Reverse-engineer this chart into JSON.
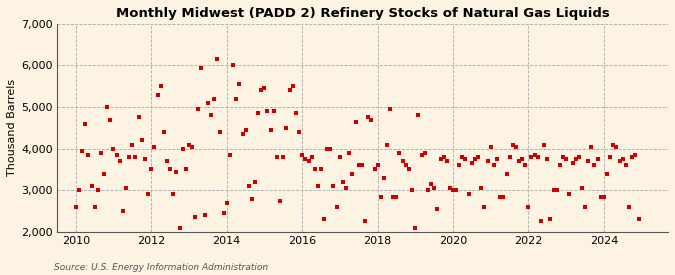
{
  "title": "Monthly Midwest (PADD 2) Refinery Stocks of Natural Gas Liquids",
  "ylabel": "Thousand Barrels",
  "source": "Source: U.S. Energy Information Administration",
  "background_color": "#fdf3e3",
  "marker_color": "#cc0000",
  "ylim": [
    2000,
    7000
  ],
  "yticks": [
    2000,
    3000,
    4000,
    5000,
    6000,
    7000
  ],
  "xlim_start": 2009.5,
  "xlim_end": 2025.7,
  "xticks": [
    2010,
    2012,
    2014,
    2016,
    2018,
    2020,
    2022,
    2024
  ],
  "data": [
    [
      2010.0,
      2600
    ],
    [
      2010.08,
      3000
    ],
    [
      2010.17,
      3950
    ],
    [
      2010.25,
      4600
    ],
    [
      2010.33,
      3850
    ],
    [
      2010.42,
      3100
    ],
    [
      2010.5,
      2600
    ],
    [
      2010.58,
      3000
    ],
    [
      2010.67,
      3900
    ],
    [
      2010.75,
      3400
    ],
    [
      2010.83,
      5000
    ],
    [
      2010.92,
      4700
    ],
    [
      2011.0,
      4000
    ],
    [
      2011.08,
      3850
    ],
    [
      2011.17,
      3700
    ],
    [
      2011.25,
      2500
    ],
    [
      2011.33,
      3050
    ],
    [
      2011.42,
      3800
    ],
    [
      2011.5,
      4100
    ],
    [
      2011.58,
      3800
    ],
    [
      2011.67,
      4750
    ],
    [
      2011.75,
      4200
    ],
    [
      2011.83,
      3750
    ],
    [
      2011.92,
      2900
    ],
    [
      2012.0,
      3500
    ],
    [
      2012.08,
      4050
    ],
    [
      2012.17,
      5300
    ],
    [
      2012.25,
      5500
    ],
    [
      2012.33,
      4400
    ],
    [
      2012.42,
      3700
    ],
    [
      2012.5,
      3500
    ],
    [
      2012.58,
      2900
    ],
    [
      2012.67,
      3450
    ],
    [
      2012.75,
      2100
    ],
    [
      2012.83,
      4000
    ],
    [
      2012.92,
      3500
    ],
    [
      2013.0,
      4100
    ],
    [
      2013.08,
      4050
    ],
    [
      2013.17,
      2350
    ],
    [
      2013.25,
      4950
    ],
    [
      2013.33,
      5950
    ],
    [
      2013.42,
      2400
    ],
    [
      2013.5,
      5100
    ],
    [
      2013.58,
      4800
    ],
    [
      2013.67,
      5200
    ],
    [
      2013.75,
      6150
    ],
    [
      2013.83,
      4400
    ],
    [
      2013.92,
      2450
    ],
    [
      2014.0,
      2700
    ],
    [
      2014.08,
      3850
    ],
    [
      2014.17,
      6000
    ],
    [
      2014.25,
      5200
    ],
    [
      2014.33,
      5550
    ],
    [
      2014.42,
      4350
    ],
    [
      2014.5,
      4450
    ],
    [
      2014.58,
      3100
    ],
    [
      2014.67,
      2800
    ],
    [
      2014.75,
      3200
    ],
    [
      2014.83,
      4850
    ],
    [
      2014.92,
      5400
    ],
    [
      2015.0,
      5450
    ],
    [
      2015.08,
      4900
    ],
    [
      2015.17,
      4450
    ],
    [
      2015.25,
      4900
    ],
    [
      2015.33,
      3800
    ],
    [
      2015.42,
      2750
    ],
    [
      2015.5,
      3800
    ],
    [
      2015.58,
      4500
    ],
    [
      2015.67,
      5400
    ],
    [
      2015.75,
      5500
    ],
    [
      2015.83,
      4850
    ],
    [
      2015.92,
      4400
    ],
    [
      2016.0,
      3850
    ],
    [
      2016.08,
      3750
    ],
    [
      2016.17,
      3700
    ],
    [
      2016.25,
      3800
    ],
    [
      2016.33,
      3500
    ],
    [
      2016.42,
      3100
    ],
    [
      2016.5,
      3500
    ],
    [
      2016.58,
      2300
    ],
    [
      2016.67,
      4000
    ],
    [
      2016.75,
      4000
    ],
    [
      2016.83,
      3100
    ],
    [
      2016.92,
      2600
    ],
    [
      2017.0,
      3800
    ],
    [
      2017.08,
      3200
    ],
    [
      2017.17,
      3050
    ],
    [
      2017.25,
      3900
    ],
    [
      2017.33,
      3400
    ],
    [
      2017.42,
      4650
    ],
    [
      2017.5,
      3600
    ],
    [
      2017.58,
      3600
    ],
    [
      2017.67,
      2250
    ],
    [
      2017.75,
      4750
    ],
    [
      2017.83,
      4700
    ],
    [
      2017.92,
      3500
    ],
    [
      2018.0,
      3600
    ],
    [
      2018.08,
      2850
    ],
    [
      2018.17,
      3300
    ],
    [
      2018.25,
      4100
    ],
    [
      2018.33,
      4950
    ],
    [
      2018.42,
      2850
    ],
    [
      2018.5,
      2850
    ],
    [
      2018.58,
      3900
    ],
    [
      2018.67,
      3700
    ],
    [
      2018.75,
      3600
    ],
    [
      2018.83,
      3500
    ],
    [
      2018.92,
      3000
    ],
    [
      2019.0,
      2100
    ],
    [
      2019.08,
      4800
    ],
    [
      2019.17,
      3850
    ],
    [
      2019.25,
      3900
    ],
    [
      2019.33,
      3000
    ],
    [
      2019.42,
      3150
    ],
    [
      2019.5,
      3050
    ],
    [
      2019.58,
      2550
    ],
    [
      2019.67,
      3750
    ],
    [
      2019.75,
      3800
    ],
    [
      2019.83,
      3700
    ],
    [
      2019.92,
      3050
    ],
    [
      2020.0,
      3000
    ],
    [
      2020.08,
      3000
    ],
    [
      2020.17,
      3600
    ],
    [
      2020.25,
      3800
    ],
    [
      2020.33,
      3750
    ],
    [
      2020.42,
      2900
    ],
    [
      2020.5,
      3650
    ],
    [
      2020.58,
      3750
    ],
    [
      2020.67,
      3800
    ],
    [
      2020.75,
      3050
    ],
    [
      2020.83,
      2600
    ],
    [
      2020.92,
      3700
    ],
    [
      2021.0,
      4050
    ],
    [
      2021.08,
      3600
    ],
    [
      2021.17,
      3750
    ],
    [
      2021.25,
      2850
    ],
    [
      2021.33,
      2850
    ],
    [
      2021.42,
      3400
    ],
    [
      2021.5,
      3800
    ],
    [
      2021.58,
      4100
    ],
    [
      2021.67,
      4050
    ],
    [
      2021.75,
      3700
    ],
    [
      2021.83,
      3750
    ],
    [
      2021.92,
      3600
    ],
    [
      2022.0,
      2600
    ],
    [
      2022.08,
      3800
    ],
    [
      2022.17,
      3850
    ],
    [
      2022.25,
      3800
    ],
    [
      2022.33,
      2250
    ],
    [
      2022.42,
      4100
    ],
    [
      2022.5,
      3750
    ],
    [
      2022.58,
      2300
    ],
    [
      2022.67,
      3000
    ],
    [
      2022.75,
      3000
    ],
    [
      2022.83,
      3600
    ],
    [
      2022.92,
      3800
    ],
    [
      2023.0,
      3750
    ],
    [
      2023.08,
      2900
    ],
    [
      2023.17,
      3650
    ],
    [
      2023.25,
      3750
    ],
    [
      2023.33,
      3800
    ],
    [
      2023.42,
      3050
    ],
    [
      2023.5,
      2600
    ],
    [
      2023.58,
      3700
    ],
    [
      2023.67,
      4050
    ],
    [
      2023.75,
      3600
    ],
    [
      2023.83,
      3750
    ],
    [
      2023.92,
      2850
    ],
    [
      2024.0,
      2850
    ],
    [
      2024.08,
      3400
    ],
    [
      2024.17,
      3800
    ],
    [
      2024.25,
      4100
    ],
    [
      2024.33,
      4050
    ],
    [
      2024.42,
      3700
    ],
    [
      2024.5,
      3750
    ],
    [
      2024.58,
      3600
    ],
    [
      2024.67,
      2600
    ],
    [
      2024.75,
      3800
    ],
    [
      2024.83,
      3850
    ],
    [
      2024.92,
      2300
    ]
  ]
}
